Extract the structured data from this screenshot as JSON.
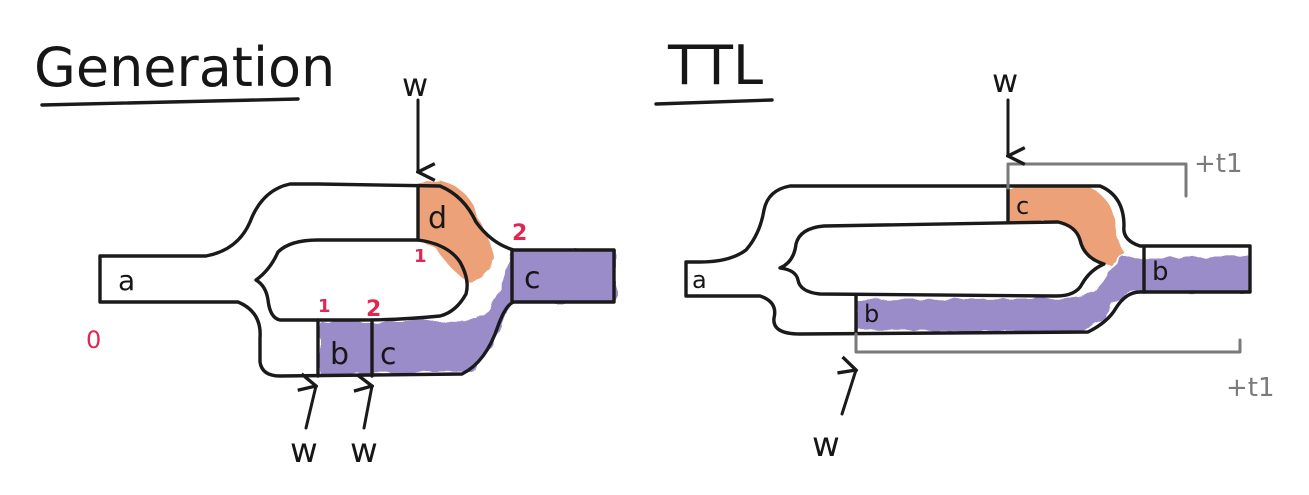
{
  "colors": {
    "ink": "#1a1a1a",
    "red_annotation": "#e0274f",
    "orange_fill": "#e88a55",
    "purple_fill": "#6a57b0",
    "bracket_gray": "#7a7a7a"
  },
  "generation": {
    "title": "Generation",
    "writer_top": "w",
    "writer_bottom_left": "w",
    "writer_bottom_right": "w",
    "segments": {
      "a": "a",
      "b": "b",
      "c_lower": "c",
      "c_outlet": "c",
      "d": "d"
    },
    "gen_numbers": {
      "origin": "0",
      "lower_b": "1",
      "lower_c": "2",
      "upper_d": "1",
      "outlet": "2"
    }
  },
  "ttl": {
    "title": "TTL",
    "writer_top": "w",
    "writer_bottom": "w",
    "segments": {
      "a": "a",
      "c": "c",
      "b_lower": "b",
      "b_outlet": "b"
    },
    "ttl_labels": {
      "upper": "+t1",
      "lower": "+t1"
    }
  }
}
